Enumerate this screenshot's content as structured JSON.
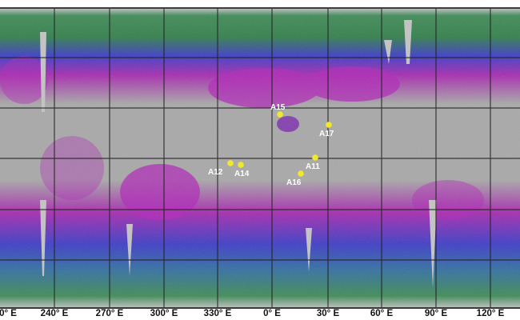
{
  "map": {
    "x_axis_labels": [
      "0° E",
      "240° E",
      "270° E",
      "300° E",
      "330° E",
      "0° E",
      "30° E",
      "60° E",
      "90° E",
      "120° E"
    ],
    "landing_sites": [
      {
        "label": "A15"
      },
      {
        "label": "A17"
      },
      {
        "label": "A11"
      },
      {
        "label": "A12"
      },
      {
        "label": "A14"
      },
      {
        "label": "A16"
      }
    ],
    "colors": {
      "terrain": "#a9a9a9",
      "marker": "#f2e82a",
      "high_band_purple": "#b02ab8",
      "band_blue": "#3a3ad0",
      "band_green": "#2f8a3a",
      "grid": "#222222"
    }
  }
}
